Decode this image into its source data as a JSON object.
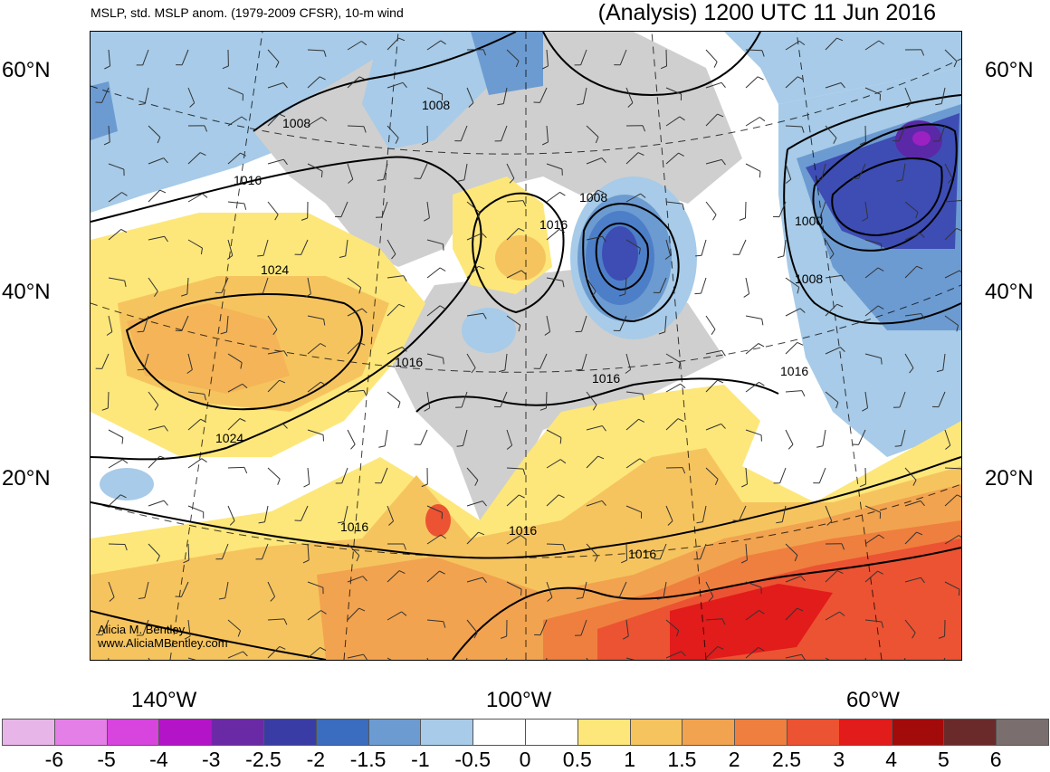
{
  "header": {
    "left_title": "MSLP, std. MSLP anom. (1979-2009 CFSR), 10-m wind",
    "right_title": "(Analysis) 1200 UTC 11 Jun 2016"
  },
  "map": {
    "lat_labels": [
      "60°N",
      "40°N",
      "20°N"
    ],
    "lon_labels": [
      "140°W",
      "100°W",
      "60°W"
    ],
    "isobar_labels": [
      "1008",
      "1008",
      "1016",
      "1008",
      "1016",
      "1000",
      "1008",
      "1024",
      "1016",
      "1016",
      "1016",
      "1024",
      "1016",
      "1016",
      "1016"
    ],
    "credit": [
      "Alicia M. Bentley",
      "www.AliciaMBentley.com"
    ],
    "colors": {
      "land_gray": "#cfcfcf",
      "neutral": "#ffffff",
      "pos_0_5": "#fde77a",
      "pos_1": "#f6c45e",
      "pos_1_5": "#f2a34f",
      "pos_2": "#ef7f3e",
      "pos_2_5": "#ec5332",
      "pos_3": "#e21b1b",
      "neg_0_5": "#a7cbe8",
      "neg_1": "#7fa9d8",
      "neg_1_5": "#4d7fc8",
      "neg_2": "#3d4db4",
      "neg_2_5": "#5b28a8",
      "neg_3": "#9b21c2"
    }
  },
  "colorbar": {
    "labels": [
      "-6",
      "-5",
      "-4",
      "-3",
      "-2.5",
      "-2",
      "-1.5",
      "-1",
      "-0.5",
      "0",
      "0.5",
      "1",
      "1.5",
      "2",
      "2.5",
      "3",
      "4",
      "5",
      "6"
    ],
    "colors": [
      "#e8b5e8",
      "#e57fe8",
      "#d844de",
      "#b414c8",
      "#6b2aa5",
      "#3a3ca5",
      "#3a6cbf",
      "#6c9bd1",
      "#a7cbe8",
      "#ffffff",
      "#ffffff",
      "#fde77a",
      "#f6c45e",
      "#f2a34f",
      "#ef7f3e",
      "#ec5332",
      "#e21b1b",
      "#a30a0a",
      "#6b2a2a",
      "#7a6e6e"
    ]
  }
}
